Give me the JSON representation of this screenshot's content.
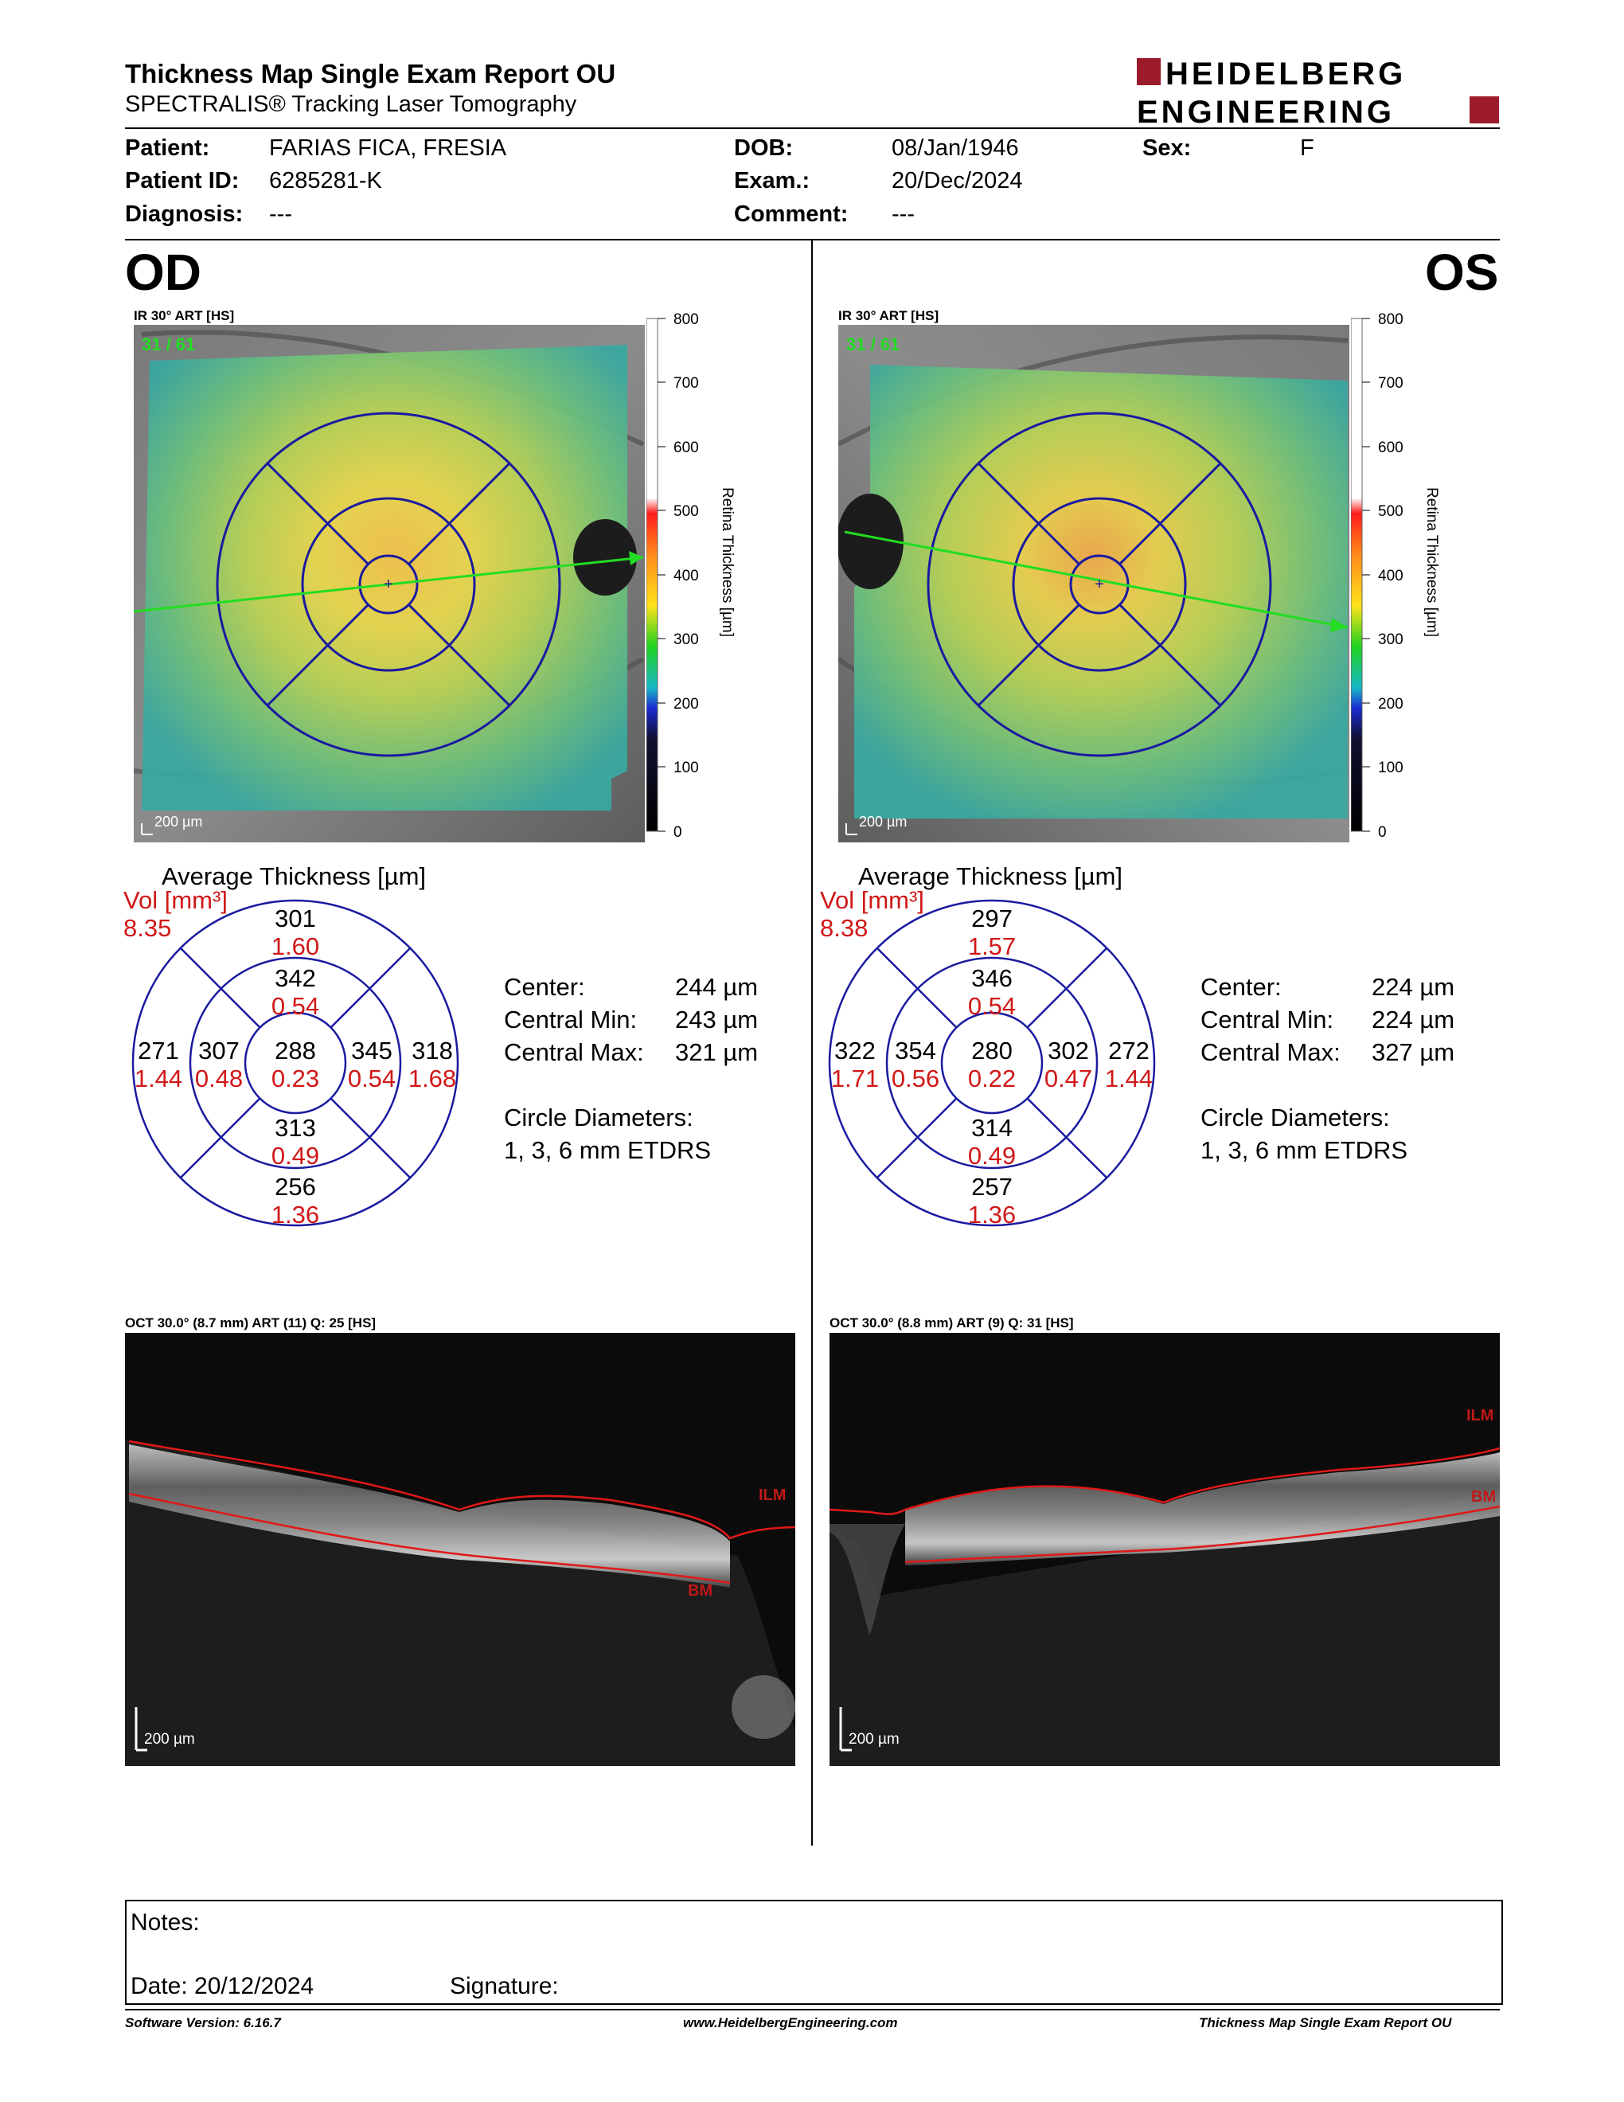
{
  "report": {
    "title": "Thickness Map Single Exam Report OU",
    "subtitle": "SPECTRALIS® Tracking Laser Tomography",
    "logo_line1": "HEIDELBERG",
    "logo_line2": "ENGINEERING"
  },
  "patient": {
    "patient_label": "Patient:",
    "patient_value": "FARIAS FICA, FRESIA",
    "id_label": "Patient ID:",
    "id_value": "6285281-K",
    "diagnosis_label": "Diagnosis:",
    "diagnosis_value": "---",
    "dob_label": "DOB:",
    "dob_value": "08/Jan/1946",
    "exam_label": "Exam.:",
    "exam_value": "20/Dec/2024",
    "comment_label": "Comment:",
    "comment_value": "---",
    "sex_label": "Sex:",
    "sex_value": "F"
  },
  "scale": {
    "ticks": [
      "800",
      "700",
      "600",
      "500",
      "400",
      "300",
      "200",
      "100",
      "0"
    ],
    "label": "Retina Thickness [µm]"
  },
  "od": {
    "eye": "OD",
    "ir_label": "IR 30° ART [HS]",
    "ir_counter": "31 / 61",
    "scale_bar": "200 µm",
    "avg_title": "Average Thickness [µm]",
    "vol_label": "Vol [mm³]",
    "vol_value": "8.35",
    "sectors": {
      "outer_sup": {
        "t": "301",
        "v": "1.60"
      },
      "inner_sup": {
        "t": "342",
        "v": "0.54"
      },
      "outer_left": {
        "t": "271",
        "v": "1.44"
      },
      "inner_left": {
        "t": "307",
        "v": "0.48"
      },
      "center": {
        "t": "288",
        "v": "0.23"
      },
      "inner_right": {
        "t": "345",
        "v": "0.54"
      },
      "outer_right": {
        "t": "318",
        "v": "1.68"
      },
      "inner_inf": {
        "t": "313",
        "v": "0.49"
      },
      "outer_inf": {
        "t": "256",
        "v": "1.36"
      }
    },
    "center_label": "Center:",
    "center_value": "244 µm",
    "cmin_label": "Central Min:",
    "cmin_value": "243 µm",
    "cmax_label": "Central Max:",
    "cmax_value": "321 µm",
    "circ_label": "Circle Diameters:",
    "circ_value": "1, 3, 6 mm ETDRS",
    "oct_label": "OCT 30.0° (8.7 mm) ART (11) Q: 25 [HS]",
    "oct_scale": "200 µm",
    "ilm": "ILM",
    "bm": "BM"
  },
  "os": {
    "eye": "OS",
    "ir_label": "IR 30° ART [HS]",
    "ir_counter": "31 / 61",
    "scale_bar": "200 µm",
    "avg_title": "Average Thickness [µm]",
    "vol_label": "Vol [mm³]",
    "vol_value": "8.38",
    "sectors": {
      "outer_sup": {
        "t": "297",
        "v": "1.57"
      },
      "inner_sup": {
        "t": "346",
        "v": "0.54"
      },
      "outer_left": {
        "t": "322",
        "v": "1.71"
      },
      "inner_left": {
        "t": "354",
        "v": "0.56"
      },
      "center": {
        "t": "280",
        "v": "0.22"
      },
      "inner_right": {
        "t": "302",
        "v": "0.47"
      },
      "outer_right": {
        "t": "272",
        "v": "1.44"
      },
      "inner_inf": {
        "t": "314",
        "v": "0.49"
      },
      "outer_inf": {
        "t": "257",
        "v": "1.36"
      }
    },
    "center_label": "Center:",
    "center_value": "224 µm",
    "cmin_label": "Central Min:",
    "cmin_value": "224 µm",
    "cmax_label": "Central Max:",
    "cmax_value": "327 µm",
    "circ_label": "Circle Diameters:",
    "circ_value": "1, 3, 6 mm ETDRS",
    "oct_label": "OCT 30.0° (8.8 mm) ART (9) Q: 31 [HS]",
    "oct_scale": "200 µm",
    "ilm": "ILM",
    "bm": "BM"
  },
  "notes": {
    "notes_label": "Notes:",
    "date_label": "Date: 20/12/2024",
    "signature_label": "Signature:"
  },
  "footer": {
    "software": "Software Version: 6.16.7",
    "website": "www.HeidelbergEngineering.com",
    "report": "Thickness Map Single Exam Report OU"
  },
  "colors": {
    "accent_red": "#9b1b2a",
    "ring_blue": "#1a1aa0",
    "value_red": "#d01818",
    "scan_green": "#22dd22"
  }
}
